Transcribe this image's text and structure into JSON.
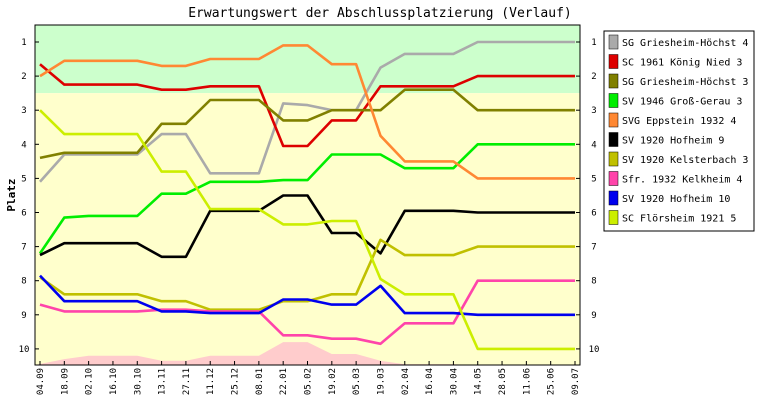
{
  "chart_data": {
    "type": "line",
    "title": "Erwartungswert der Abschlussplatzierung (Verlauf)",
    "ylabel": "Platz",
    "ylim": [
      1,
      10
    ],
    "y_reversed": true,
    "yticks": [
      "1",
      "2",
      "3",
      "4",
      "5",
      "6",
      "7",
      "8",
      "9",
      "10"
    ],
    "grid": false,
    "legend_position": "right",
    "zones": [
      {
        "from": 0.5,
        "to": 2.5,
        "color": "#ccffcc"
      },
      {
        "from": 2.5,
        "to": 10.5,
        "color": "#ffffcc"
      }
    ],
    "x": [
      "04.09",
      "18.09",
      "02.10",
      "16.10",
      "30.10",
      "13.11",
      "27.11",
      "11.12",
      "25.12",
      "08.01",
      "22.01",
      "05.02",
      "19.02",
      "05.03",
      "19.03",
      "02.04",
      "16.04",
      "30.04",
      "14.05",
      "28.05",
      "11.06",
      "25.06",
      "09.07"
    ],
    "bottom_area": {
      "color": "#ffcccc",
      "values": [
        10.55,
        10.3,
        10.2,
        10.2,
        10.2,
        10.35,
        10.35,
        10.2,
        10.2,
        10.2,
        9.8,
        9.8,
        10.15,
        10.15,
        10.35,
        10.45,
        10.45,
        10.45,
        10.5,
        10.55,
        10.55,
        10.55,
        10.55
      ]
    },
    "series": [
      {
        "name": "SG Griesheim-Höchst 4",
        "color": "#aaaaaa",
        "values": [
          5.1,
          4.3,
          4.3,
          4.3,
          4.3,
          3.7,
          3.7,
          4.85,
          4.85,
          4.85,
          2.8,
          2.85,
          3.0,
          3.0,
          1.75,
          1.35,
          1.35,
          1.35,
          1.0,
          1.0,
          1.0,
          1.0,
          1.0
        ]
      },
      {
        "name": "SC 1961 König Nied 3",
        "color": "#dd0000",
        "values": [
          1.65,
          2.25,
          2.25,
          2.25,
          2.25,
          2.4,
          2.4,
          2.3,
          2.3,
          2.3,
          4.05,
          4.05,
          3.3,
          3.3,
          2.3,
          2.3,
          2.3,
          2.3,
          2.0,
          2.0,
          2.0,
          2.0,
          2.0
        ]
      },
      {
        "name": "SG Griesheim-Höchst 3",
        "color": "#808000",
        "values": [
          4.4,
          4.25,
          4.25,
          4.25,
          4.25,
          3.4,
          3.4,
          2.7,
          2.7,
          2.7,
          3.3,
          3.3,
          3.0,
          3.0,
          3.0,
          2.4,
          2.4,
          2.4,
          3.0,
          3.0,
          3.0,
          3.0,
          3.0
        ]
      },
      {
        "name": "SV 1946 Groß-Gerau 3",
        "color": "#00ee00",
        "values": [
          7.2,
          6.15,
          6.1,
          6.1,
          6.1,
          5.45,
          5.45,
          5.1,
          5.1,
          5.1,
          5.05,
          5.05,
          4.3,
          4.3,
          4.3,
          4.7,
          4.7,
          4.7,
          4.0,
          4.0,
          4.0,
          4.0,
          4.0
        ]
      },
      {
        "name": "SVG Eppstein 1932 4",
        "color": "#ff8833",
        "values": [
          2.0,
          1.55,
          1.55,
          1.55,
          1.55,
          1.7,
          1.7,
          1.5,
          1.5,
          1.5,
          1.1,
          1.1,
          1.65,
          1.65,
          3.75,
          4.5,
          4.5,
          4.5,
          5.0,
          5.0,
          5.0,
          5.0,
          5.0
        ]
      },
      {
        "name": "SV 1920 Hofheim 9",
        "color": "#000000",
        "values": [
          7.25,
          6.9,
          6.9,
          6.9,
          6.9,
          7.3,
          7.3,
          5.95,
          5.95,
          5.95,
          5.5,
          5.5,
          6.6,
          6.6,
          7.2,
          5.95,
          5.95,
          5.95,
          6.0,
          6.0,
          6.0,
          6.0,
          6.0
        ]
      },
      {
        "name": "SV 1920 Kelsterbach 3",
        "color": "#c0c000",
        "values": [
          7.9,
          8.4,
          8.4,
          8.4,
          8.4,
          8.6,
          8.6,
          8.85,
          8.85,
          8.85,
          8.6,
          8.6,
          8.4,
          8.4,
          6.8,
          7.25,
          7.25,
          7.25,
          7.0,
          7.0,
          7.0,
          7.0,
          7.0
        ]
      },
      {
        "name": "Sfr. 1932 Kelkheim 4",
        "color": "#ff44aa",
        "values": [
          8.7,
          8.9,
          8.9,
          8.9,
          8.9,
          8.85,
          8.85,
          8.9,
          8.9,
          8.9,
          9.6,
          9.6,
          9.7,
          9.7,
          9.85,
          9.25,
          9.25,
          9.25,
          8.0,
          8.0,
          8.0,
          8.0,
          8.0
        ]
      },
      {
        "name": "SV 1920 Hofheim 10",
        "color": "#0000ee",
        "values": [
          7.85,
          8.6,
          8.6,
          8.6,
          8.6,
          8.9,
          8.9,
          8.95,
          8.95,
          8.95,
          8.55,
          8.55,
          8.7,
          8.7,
          8.15,
          8.95,
          8.95,
          8.95,
          9.0,
          9.0,
          9.0,
          9.0,
          9.0
        ]
      },
      {
        "name": "SC Flörsheim 1921 5",
        "color": "#ccee00",
        "values": [
          3.0,
          3.7,
          3.7,
          3.7,
          3.7,
          4.8,
          4.8,
          5.9,
          5.9,
          5.9,
          6.35,
          6.35,
          6.25,
          6.25,
          7.95,
          8.4,
          8.4,
          8.4,
          10.0,
          10.0,
          10.0,
          10.0,
          10.0
        ]
      }
    ]
  }
}
